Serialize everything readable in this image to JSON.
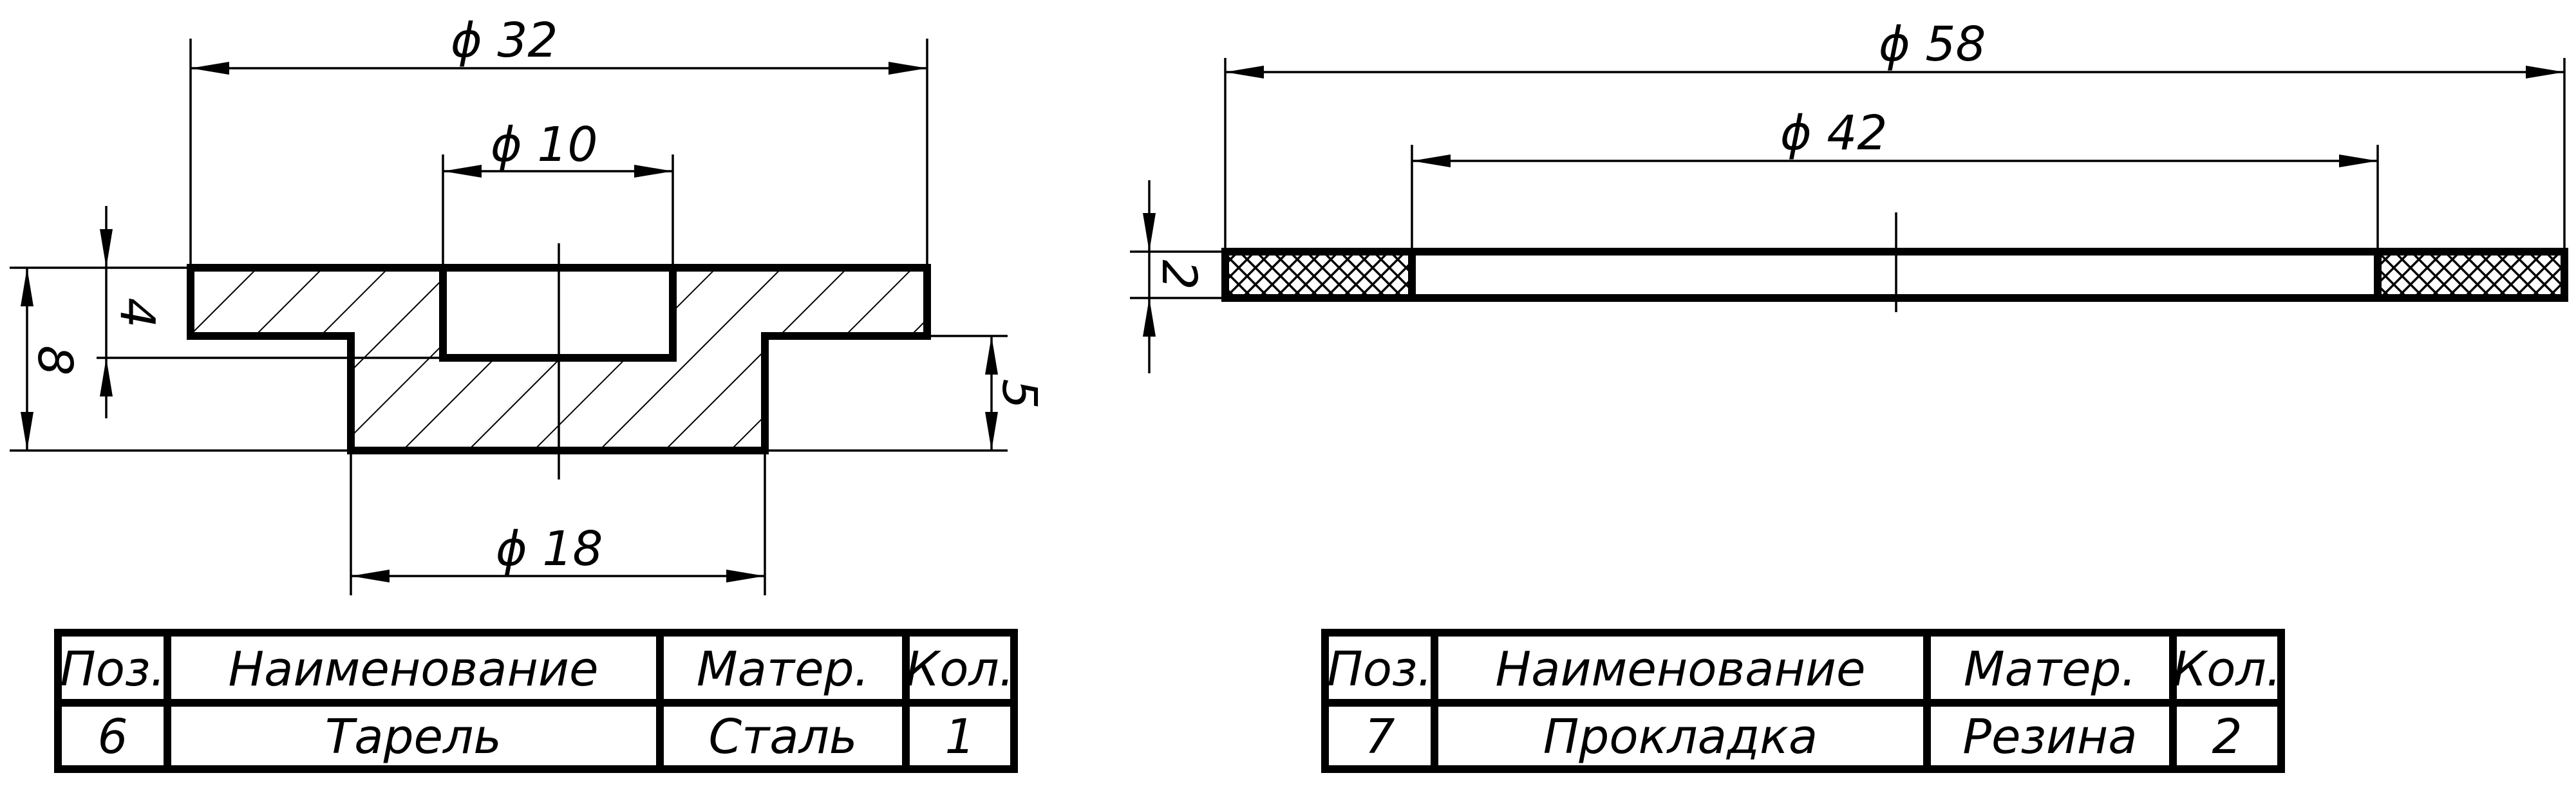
{
  "part6": {
    "dims": {
      "d32": "ϕ 32",
      "d10": "ϕ 10",
      "d18": "ϕ 18",
      "h8": "8",
      "h4": "4",
      "h5": "5"
    },
    "table": {
      "headers": [
        "Поз.",
        "Наименование",
        "Матер.",
        "Кол."
      ],
      "row": [
        "6",
        "Тарель",
        "Сталь",
        "1"
      ]
    }
  },
  "part7": {
    "dims": {
      "d58": "ϕ 58",
      "d42": "ϕ 42",
      "h2": "2"
    },
    "table": {
      "headers": [
        "Поз.",
        "Наименование",
        "Матер.",
        "Кол."
      ],
      "row": [
        "7",
        "Прокладка",
        "Резина",
        "2"
      ]
    }
  }
}
